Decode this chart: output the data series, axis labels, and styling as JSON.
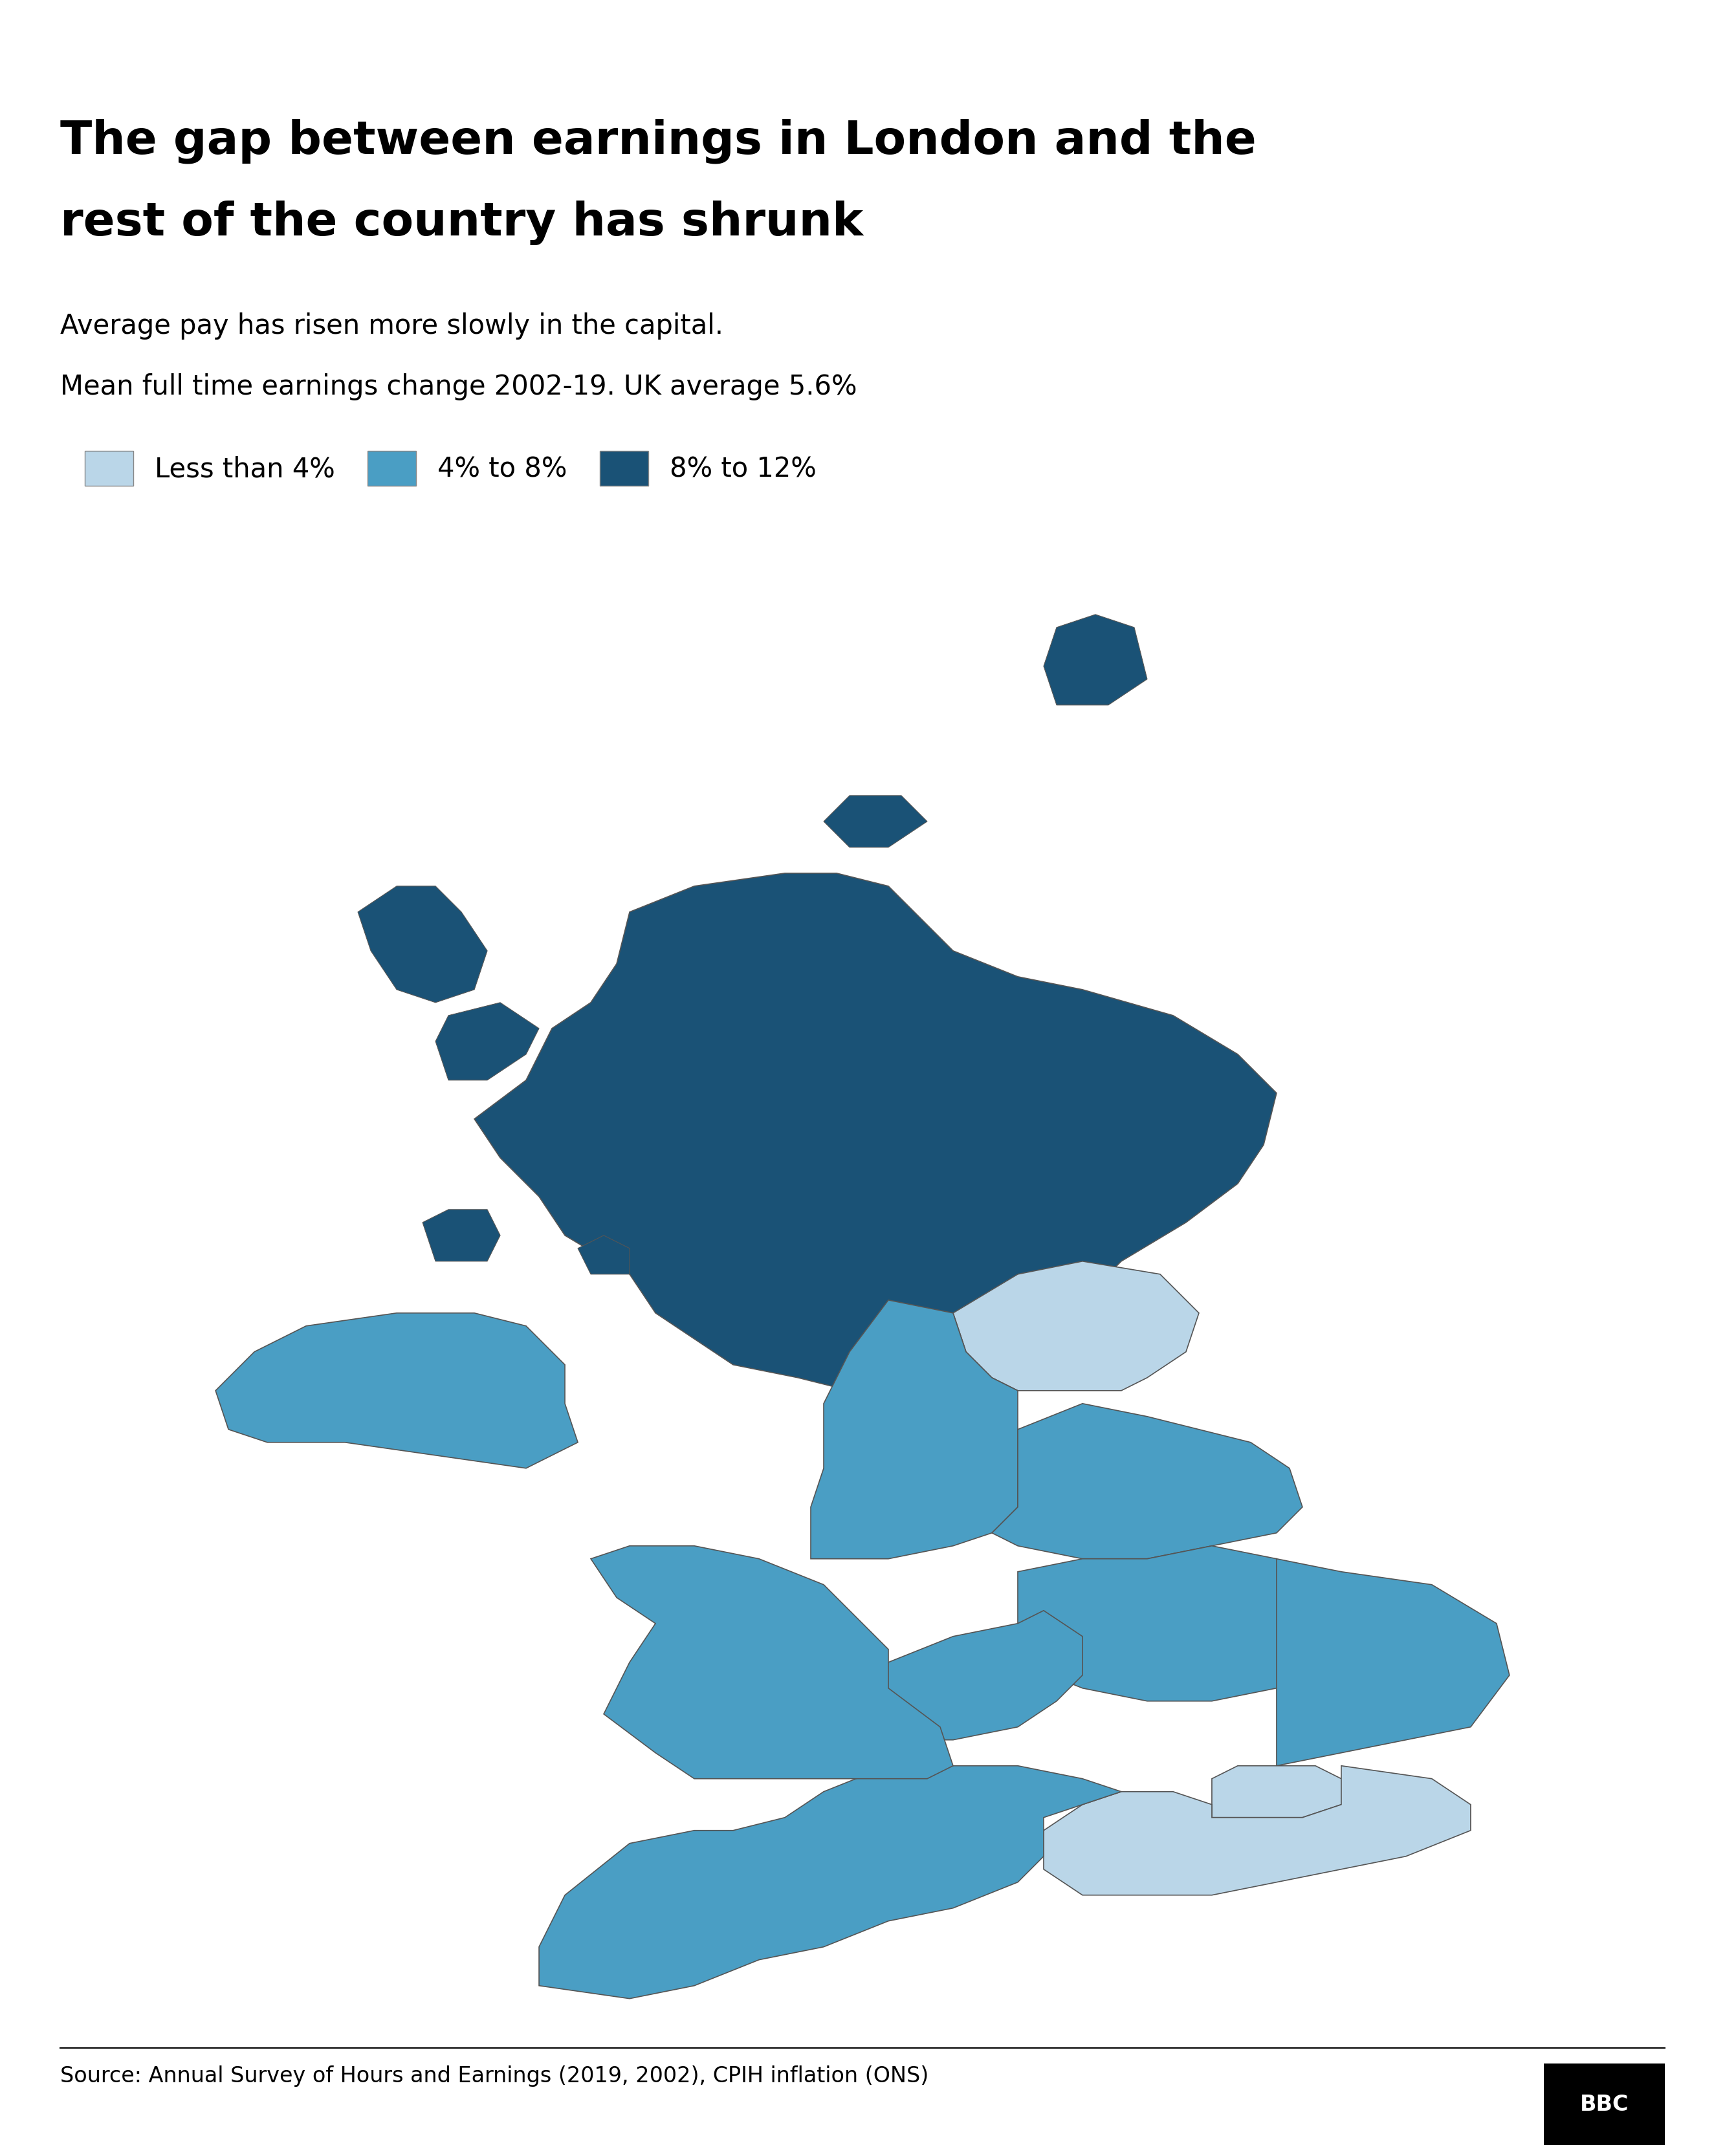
{
  "title_line1": "The gap between earnings in London and the",
  "title_line2": "rest of the country has shrunk",
  "subtitle_line1": "Average pay has risen more slowly in the capital.",
  "subtitle_line2": "Mean full time earnings change 2002-19. UK average 5.6%",
  "source": "Source: Annual Survey of Hours and Earnings (2019, 2002), CPIH inflation (ONS)",
  "bbc_logo": "BBC",
  "legend_items": [
    {
      "label": "Less than 4%",
      "color": "#bad6e8"
    },
    {
      "label": "4% to 8%",
      "color": "#4a9ec4"
    },
    {
      "label": "8% to 12%",
      "color": "#1a5276"
    }
  ],
  "region_colors": {
    "Scotland": "#1a5276",
    "Northern Ireland": "#4a9ec4",
    "North East": "#bad6e8",
    "North West": "#4a9ec4",
    "Yorkshire and The Humber": "#4a9ec4",
    "East Midlands": "#4a9ec4",
    "West Midlands": "#4a9ec4",
    "East of England": "#4a9ec4",
    "London": "#bad6e8",
    "South East": "#bad6e8",
    "South West": "#4a9ec4",
    "Wales": "#4a9ec4"
  },
  "background_color": "#ffffff",
  "map_edge_color": "#555555",
  "title_fontsize": 52,
  "subtitle_fontsize": 30,
  "source_fontsize": 24,
  "legend_fontsize": 30
}
